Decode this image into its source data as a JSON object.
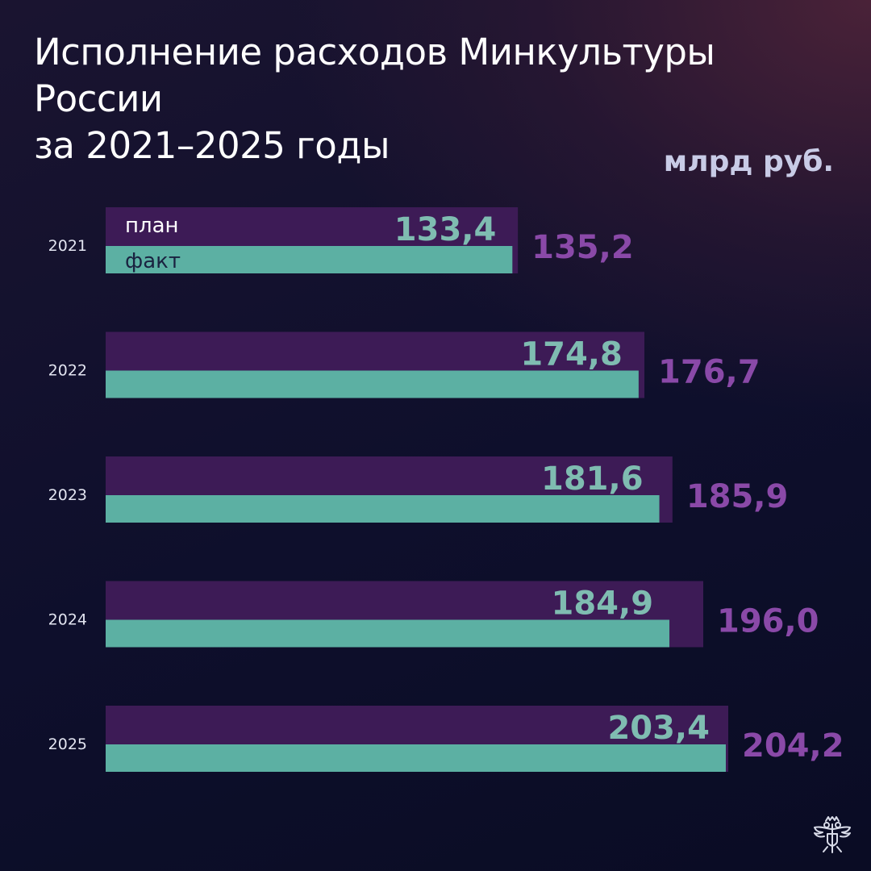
{
  "title_line1": "Исполнение расходов Минкультуры России",
  "title_line2": "за 2021–2025 годы",
  "unit": "млрд руб.",
  "colors": {
    "plan": "#3d1b56",
    "fact": "#5cb0a3",
    "plan_label": "#8a49a8",
    "fact_label": "#7fbcb1",
    "year_label": "#e2e4f0"
  },
  "chart_data": {
    "type": "bar",
    "orientation": "horizontal",
    "categories": [
      "2021",
      "2022",
      "2023",
      "2024",
      "2025"
    ],
    "series": [
      {
        "name": "план",
        "values": [
          135.2,
          176.7,
          185.9,
          196.0,
          204.2
        ],
        "labels": [
          "135,2",
          "176,7",
          "185,9",
          "196,0",
          "204,2"
        ]
      },
      {
        "name": "факт",
        "values": [
          133.4,
          174.8,
          181.6,
          184.9,
          203.4
        ],
        "labels": [
          "133,4",
          "174,8",
          "181,6",
          "184,9",
          "203,4"
        ]
      }
    ],
    "unit": "млрд руб.",
    "xlim": [
      0,
      204.2
    ],
    "grid": false,
    "legend": "inside-first-bar"
  },
  "logo_icon": "double-headed-eagle-icon"
}
